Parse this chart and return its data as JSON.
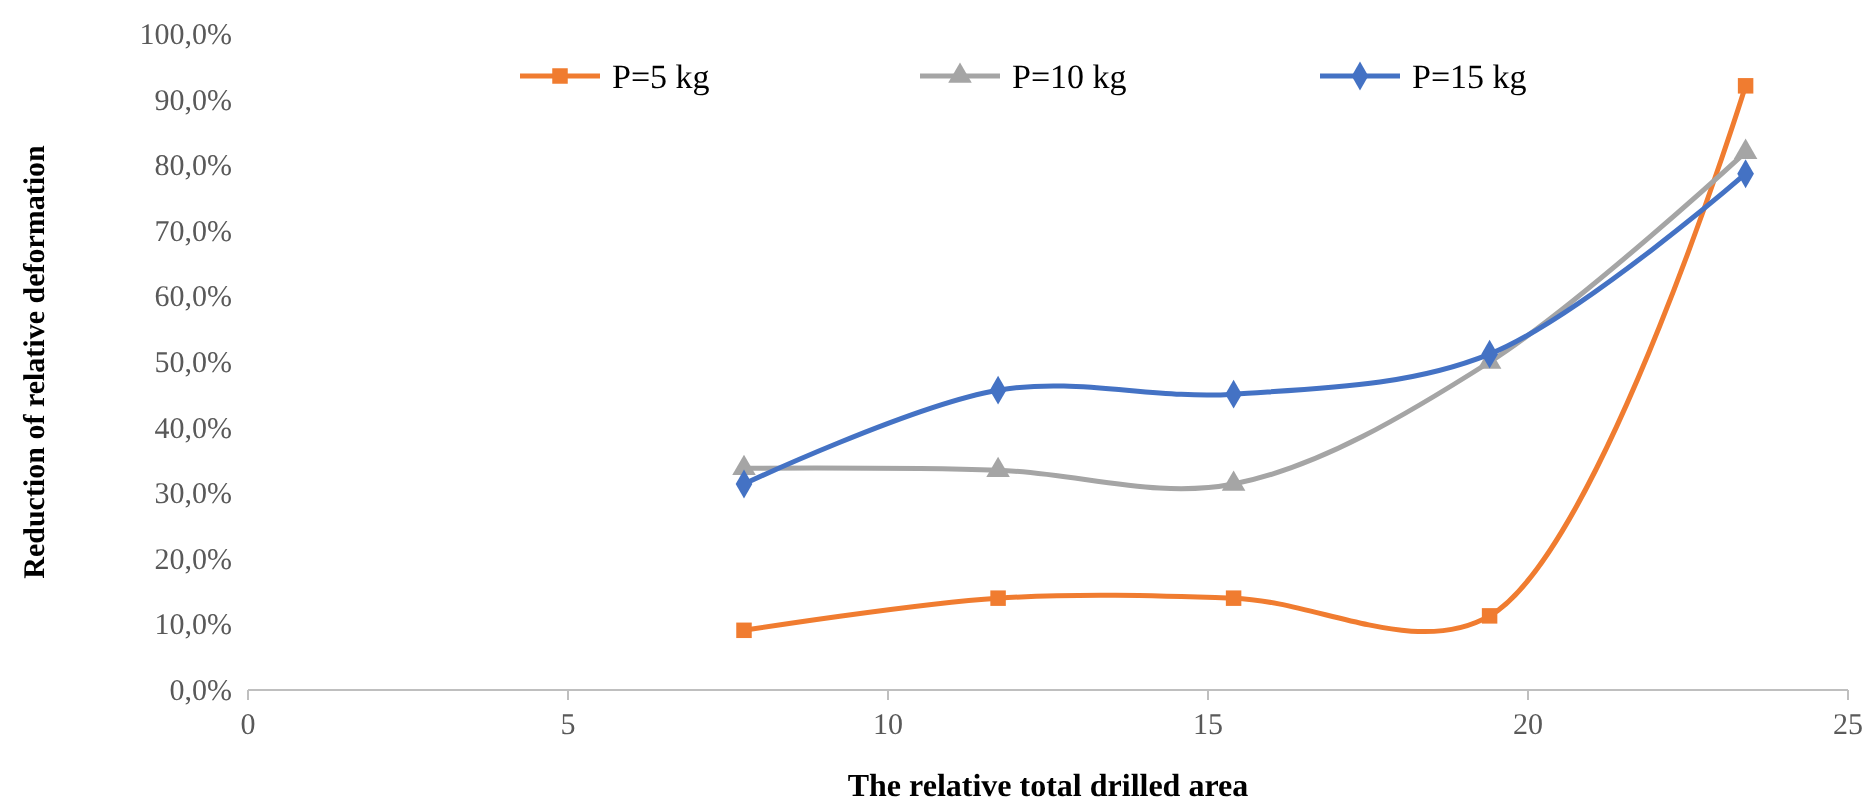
{
  "chart_data": {
    "type": "line",
    "xlabel": "The relative total drilled area",
    "ylabel": "Reduction of relative deformation",
    "xlim": [
      0,
      25
    ],
    "xticks": [
      0,
      5,
      10,
      15,
      20,
      25
    ],
    "ylim": [
      0,
      100
    ],
    "yticks": [
      {
        "value": 0,
        "label": "0,0%"
      },
      {
        "value": 10,
        "label": "10,0%"
      },
      {
        "value": 20,
        "label": "20,0%"
      },
      {
        "value": 30,
        "label": "30,0%"
      },
      {
        "value": 40,
        "label": "40,0%"
      },
      {
        "value": 50,
        "label": "50,0%"
      },
      {
        "value": 60,
        "label": "60,0%"
      },
      {
        "value": 70,
        "label": "70,0%"
      },
      {
        "value": 80,
        "label": "80,0%"
      },
      {
        "value": 90,
        "label": "90,0%"
      },
      {
        "value": 100,
        "label": "100,0%"
      }
    ],
    "x": [
      7.75,
      11.72,
      15.4,
      19.4,
      23.4
    ],
    "legend": "top",
    "grid": false,
    "line_style": "solid",
    "series": [
      {
        "name": "P=5 kg",
        "color": "#f07c30",
        "marker": "square",
        "values": [
          9.1,
          14.0,
          14.0,
          11.3,
          92.1
        ]
      },
      {
        "name": "P=10 kg",
        "color": "#a5a5a5",
        "marker": "triangle",
        "values": [
          33.8,
          33.5,
          31.4,
          50.0,
          82.0
        ]
      },
      {
        "name": "P=15 kg",
        "color": "#4472c4",
        "marker": "diamond",
        "values": [
          31.4,
          45.7,
          45.1,
          51.2,
          78.7
        ]
      }
    ]
  }
}
